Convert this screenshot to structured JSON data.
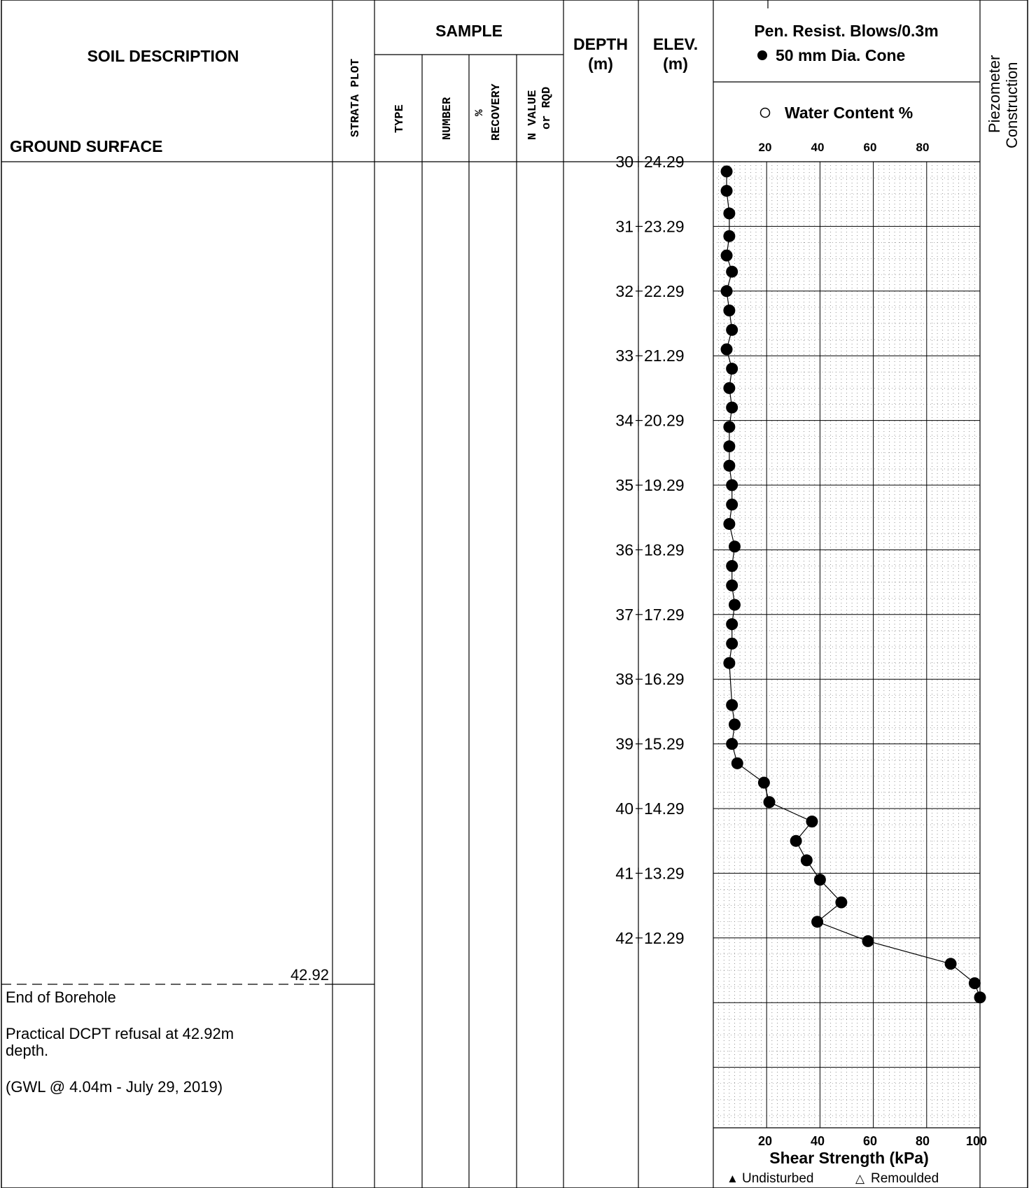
{
  "header": {
    "soil_description": "SOIL DESCRIPTION",
    "ground_surface": "GROUND SURFACE",
    "strata_plot": "STRATA PLOT",
    "sample": "SAMPLE",
    "type": "TYPE",
    "number": "NUMBER",
    "pct": "%",
    "recovery": "RECOVERY",
    "n_value": "N VALUE",
    "or_rqd": "or RQD",
    "depth": "DEPTH",
    "depth_unit": "(m)",
    "elev": "ELEV.",
    "elev_unit": "(m)",
    "pen_resist": "Pen. Resist.  Blows/0.3m",
    "cone_legend": "50 mm Dia. Cone",
    "water_content": "Water Content %",
    "piezometer_1": "Piezometer",
    "piezometer_2": "Construction"
  },
  "scale": {
    "top_ticks": [
      "20",
      "40",
      "60",
      "80"
    ],
    "bottom_ticks": [
      "20",
      "40",
      "60",
      "80",
      "100"
    ],
    "shear_strength": "Shear Strength (kPa)",
    "undisturbed": "Undisturbed",
    "remoulded": "Remoulded",
    "undisturbed_symbol": "▲",
    "remoulded_symbol": "△"
  },
  "depth_scale": [
    {
      "depth": "30",
      "elev": "24.29"
    },
    {
      "depth": "31",
      "elev": "23.29"
    },
    {
      "depth": "32",
      "elev": "22.29"
    },
    {
      "depth": "33",
      "elev": "21.29"
    },
    {
      "depth": "34",
      "elev": "20.29"
    },
    {
      "depth": "35",
      "elev": "19.29"
    },
    {
      "depth": "36",
      "elev": "18.29"
    },
    {
      "depth": "37",
      "elev": "17.29"
    },
    {
      "depth": "38",
      "elev": "16.29"
    },
    {
      "depth": "39",
      "elev": "15.29"
    },
    {
      "depth": "40",
      "elev": "14.29"
    },
    {
      "depth": "41",
      "elev": "13.29"
    },
    {
      "depth": "42",
      "elev": "12.29"
    }
  ],
  "end_depth_label": "42.92",
  "notes": [
    "End of Borehole",
    "Practical DCPT refusal at 42.92m",
    "depth.",
    "(GWL @ 4.04m - July 29, 2019)"
  ],
  "chart_data": {
    "type": "scatter",
    "xlabel": "Shear Strength (kPa)",
    "xlim": [
      0,
      100
    ],
    "ylim": [
      30,
      44
    ],
    "y_axis": "depth (m)",
    "series": [
      {
        "name": "50 mm Dia. Cone",
        "points": [
          [
            5,
            30.15
          ],
          [
            5,
            30.45
          ],
          [
            6,
            30.8
          ],
          [
            6,
            31.15
          ],
          [
            5,
            31.45
          ],
          [
            7,
            31.7
          ],
          [
            5,
            32.0
          ],
          [
            6,
            32.3
          ],
          [
            7,
            32.6
          ],
          [
            5,
            32.9
          ],
          [
            7,
            33.2
          ],
          [
            6,
            33.5
          ],
          [
            7,
            33.8
          ],
          [
            6,
            34.1
          ],
          [
            6,
            34.4
          ],
          [
            6,
            34.7
          ],
          [
            7,
            35.0
          ],
          [
            7,
            35.3
          ],
          [
            6,
            35.6
          ],
          [
            8,
            35.95
          ],
          [
            7,
            36.25
          ],
          [
            7,
            36.55
          ],
          [
            8,
            36.85
          ],
          [
            7,
            37.15
          ],
          [
            7,
            37.45
          ],
          [
            6,
            37.75
          ],
          [
            7,
            38.4
          ],
          [
            8,
            38.7
          ],
          [
            7,
            39.0
          ],
          [
            9,
            39.3
          ],
          [
            19,
            39.6
          ],
          [
            21,
            39.9
          ],
          [
            37,
            40.2
          ],
          [
            31,
            40.5
          ],
          [
            35,
            40.8
          ],
          [
            40,
            41.1
          ],
          [
            48,
            41.45
          ],
          [
            39,
            41.75
          ],
          [
            58,
            42.05
          ],
          [
            89,
            42.4
          ],
          [
            98,
            42.7
          ],
          [
            100,
            42.92
          ]
        ]
      }
    ]
  }
}
